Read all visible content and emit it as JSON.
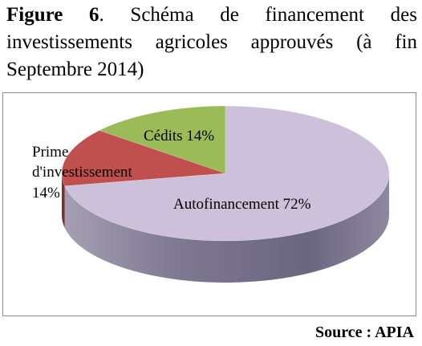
{
  "figure": {
    "label": "Figure 6",
    "caption_line1": ". Schéma de financement des",
    "caption_line2": "investissements agricoles approuvés (à fin",
    "caption_line3": "Septembre 2014)"
  },
  "source": "Source : APIA",
  "chart_data": {
    "type": "pie",
    "style": "3d",
    "slices": [
      {
        "label": "Autofinancement",
        "value": 72,
        "value_label": "72%",
        "color": "#ccc0da"
      },
      {
        "label": "Prime d'investissement",
        "value": 14,
        "value_label": "14%",
        "color": "#c0504d"
      },
      {
        "label": "Cédits",
        "value": 14,
        "value_label": "14%",
        "color": "#9bbb59"
      }
    ],
    "legend": "none",
    "data_labels": "on"
  }
}
